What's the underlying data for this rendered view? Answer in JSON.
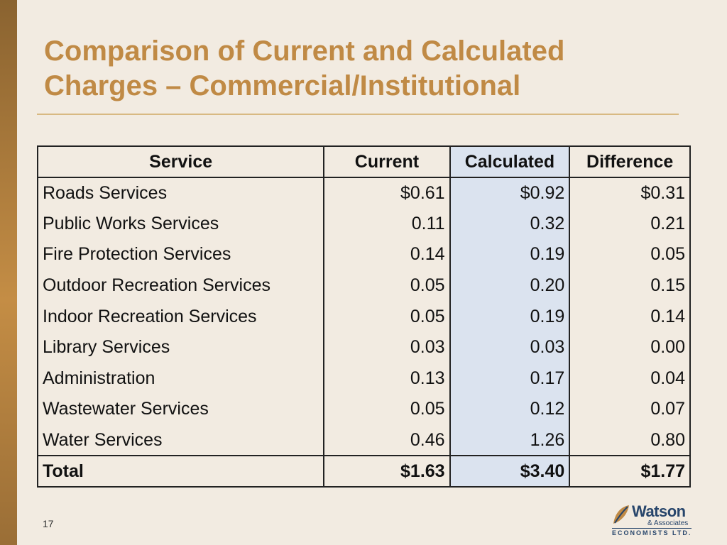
{
  "slide": {
    "title_line1": "Comparison of Current and Calculated",
    "title_line2": "Charges – Commercial/Institutional",
    "page_number": "17"
  },
  "table": {
    "headers": [
      "Service",
      "Current",
      "Calculated",
      "Difference"
    ],
    "rows": [
      {
        "service": "Roads Services",
        "current": "$0.61",
        "calculated": "$0.92",
        "difference": "$0.31"
      },
      {
        "service": "Public Works Services",
        "current": "0.11",
        "calculated": "0.32",
        "difference": "0.21"
      },
      {
        "service": "Fire Protection Services",
        "current": "0.14",
        "calculated": "0.19",
        "difference": "0.05"
      },
      {
        "service": "Outdoor Recreation Services",
        "current": "0.05",
        "calculated": "0.20",
        "difference": "0.15"
      },
      {
        "service": "Indoor Recreation Services",
        "current": "0.05",
        "calculated": "0.19",
        "difference": "0.14"
      },
      {
        "service": "Library Services",
        "current": "0.03",
        "calculated": "0.03",
        "difference": "0.00"
      },
      {
        "service": "Administration",
        "current": "0.13",
        "calculated": "0.17",
        "difference": "0.04"
      },
      {
        "service": "Wastewater Services",
        "current": "0.05",
        "calculated": "0.12",
        "difference": "0.07"
      },
      {
        "service": "Water Services",
        "current": "0.46",
        "calculated": "1.26",
        "difference": "0.80"
      }
    ],
    "total": {
      "label": "Total",
      "current": "$1.63",
      "calculated": "$3.40",
      "difference": "$1.77"
    }
  },
  "logo": {
    "name": "Watson",
    "associates": "& Associates",
    "economists": "ECONOMISTS LTD."
  },
  "colors": {
    "background": "#f2ebe1",
    "title": "#c08a45",
    "calculated_column": "#dbe3ef",
    "logo_blue": "#27456b",
    "logo_leaf": "#c08a45"
  }
}
